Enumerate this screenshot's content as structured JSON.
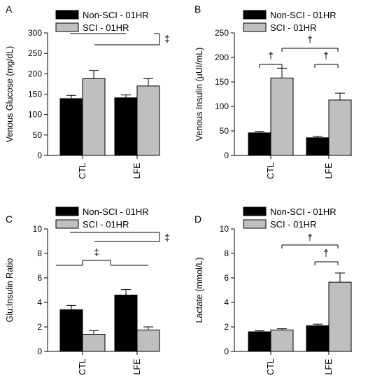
{
  "chart_data": [
    {
      "type": "bar",
      "panel_letter": "A",
      "categories": [
        "CTL",
        "LFE"
      ],
      "series": [
        {
          "name": "Non-SCI - 01HR",
          "values": [
            139,
            141
          ],
          "errors": [
            8,
            7
          ],
          "color": "#000000"
        },
        {
          "name": "SCI - 01HR",
          "values": [
            188,
            170
          ],
          "errors": [
            20,
            18
          ],
          "color": "#bfbfbf"
        }
      ],
      "ylabel": "Venous Glucose (mg/dL)",
      "ylim": [
        0,
        300
      ],
      "yticks": [
        0,
        50,
        100,
        150,
        200,
        250,
        300
      ],
      "legend_placement": "top-left",
      "annotations": [
        "‡"
      ]
    },
    {
      "type": "bar",
      "panel_letter": "B",
      "categories": [
        "CTL",
        "LFE"
      ],
      "series": [
        {
          "name": "Non-SCI - 01HR",
          "values": [
            46,
            36
          ],
          "errors": [
            3,
            3
          ],
          "color": "#000000"
        },
        {
          "name": "SCI - 01HR",
          "values": [
            158,
            113
          ],
          "errors": [
            20,
            14
          ],
          "color": "#bfbfbf"
        }
      ],
      "ylabel": "Venous Insulin (µUI/mL)",
      "ylim": [
        0,
        250
      ],
      "yticks": [
        0,
        50,
        100,
        150,
        200,
        250
      ],
      "legend_placement": "top-left",
      "annotations": [
        "†",
        "†",
        "†"
      ]
    },
    {
      "type": "bar",
      "panel_letter": "C",
      "categories": [
        "CTL",
        "LFE"
      ],
      "series": [
        {
          "name": "Non-SCI - 01HR",
          "values": [
            3.4,
            4.6
          ],
          "errors": [
            0.35,
            0.45
          ],
          "color": "#000000"
        },
        {
          "name": "SCI - 01HR",
          "values": [
            1.4,
            1.75
          ],
          "errors": [
            0.3,
            0.25
          ],
          "color": "#bfbfbf"
        }
      ],
      "ylabel": "Glu:Insulin Ratio",
      "ylim": [
        0,
        10
      ],
      "yticks": [
        0,
        2,
        4,
        6,
        8,
        10
      ],
      "legend_placement": "top-left",
      "annotations": [
        "‡",
        "‡"
      ]
    },
    {
      "type": "bar",
      "panel_letter": "D",
      "categories": [
        "CTL",
        "LFE"
      ],
      "series": [
        {
          "name": "Non-SCI - 01HR",
          "values": [
            1.6,
            2.1
          ],
          "errors": [
            0.08,
            0.12
          ],
          "color": "#000000"
        },
        {
          "name": "SCI - 01HR",
          "values": [
            1.75,
            5.65
          ],
          "errors": [
            0.1,
            0.75
          ],
          "color": "#bfbfbf"
        }
      ],
      "ylabel": "Lactate (mmol/L)",
      "ylim": [
        0,
        10
      ],
      "yticks": [
        0,
        2,
        4,
        6,
        8,
        10
      ],
      "legend_placement": "top-left",
      "annotations": [
        "†",
        "†"
      ]
    }
  ]
}
